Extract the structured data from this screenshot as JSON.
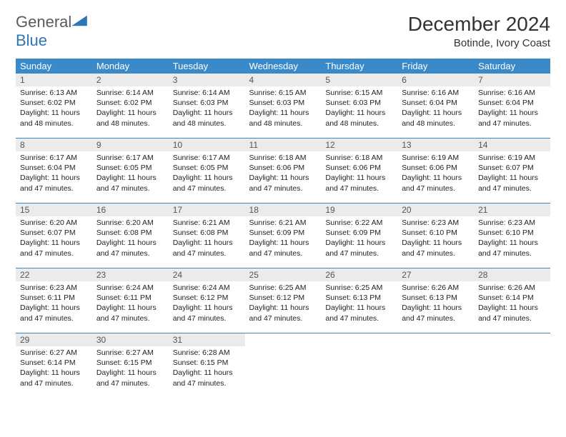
{
  "logo": {
    "general": "General",
    "blue": "Blue"
  },
  "title": "December 2024",
  "location": "Botinde, Ivory Coast",
  "colors": {
    "header_bg": "#3a8ac9",
    "header_text": "#ffffff",
    "daynum_bg": "#ebebeb",
    "daynum_text": "#555555",
    "body_text": "#222222",
    "accent": "#2e75b6"
  },
  "day_names": [
    "Sunday",
    "Monday",
    "Tuesday",
    "Wednesday",
    "Thursday",
    "Friday",
    "Saturday"
  ],
  "weeks": [
    [
      {
        "n": "1",
        "sr": "6:13 AM",
        "ss": "6:02 PM",
        "dl": "11 hours and 48 minutes."
      },
      {
        "n": "2",
        "sr": "6:14 AM",
        "ss": "6:02 PM",
        "dl": "11 hours and 48 minutes."
      },
      {
        "n": "3",
        "sr": "6:14 AM",
        "ss": "6:03 PM",
        "dl": "11 hours and 48 minutes."
      },
      {
        "n": "4",
        "sr": "6:15 AM",
        "ss": "6:03 PM",
        "dl": "11 hours and 48 minutes."
      },
      {
        "n": "5",
        "sr": "6:15 AM",
        "ss": "6:03 PM",
        "dl": "11 hours and 48 minutes."
      },
      {
        "n": "6",
        "sr": "6:16 AM",
        "ss": "6:04 PM",
        "dl": "11 hours and 48 minutes."
      },
      {
        "n": "7",
        "sr": "6:16 AM",
        "ss": "6:04 PM",
        "dl": "11 hours and 47 minutes."
      }
    ],
    [
      {
        "n": "8",
        "sr": "6:17 AM",
        "ss": "6:04 PM",
        "dl": "11 hours and 47 minutes."
      },
      {
        "n": "9",
        "sr": "6:17 AM",
        "ss": "6:05 PM",
        "dl": "11 hours and 47 minutes."
      },
      {
        "n": "10",
        "sr": "6:17 AM",
        "ss": "6:05 PM",
        "dl": "11 hours and 47 minutes."
      },
      {
        "n": "11",
        "sr": "6:18 AM",
        "ss": "6:06 PM",
        "dl": "11 hours and 47 minutes."
      },
      {
        "n": "12",
        "sr": "6:18 AM",
        "ss": "6:06 PM",
        "dl": "11 hours and 47 minutes."
      },
      {
        "n": "13",
        "sr": "6:19 AM",
        "ss": "6:06 PM",
        "dl": "11 hours and 47 minutes."
      },
      {
        "n": "14",
        "sr": "6:19 AM",
        "ss": "6:07 PM",
        "dl": "11 hours and 47 minutes."
      }
    ],
    [
      {
        "n": "15",
        "sr": "6:20 AM",
        "ss": "6:07 PM",
        "dl": "11 hours and 47 minutes."
      },
      {
        "n": "16",
        "sr": "6:20 AM",
        "ss": "6:08 PM",
        "dl": "11 hours and 47 minutes."
      },
      {
        "n": "17",
        "sr": "6:21 AM",
        "ss": "6:08 PM",
        "dl": "11 hours and 47 minutes."
      },
      {
        "n": "18",
        "sr": "6:21 AM",
        "ss": "6:09 PM",
        "dl": "11 hours and 47 minutes."
      },
      {
        "n": "19",
        "sr": "6:22 AM",
        "ss": "6:09 PM",
        "dl": "11 hours and 47 minutes."
      },
      {
        "n": "20",
        "sr": "6:23 AM",
        "ss": "6:10 PM",
        "dl": "11 hours and 47 minutes."
      },
      {
        "n": "21",
        "sr": "6:23 AM",
        "ss": "6:10 PM",
        "dl": "11 hours and 47 minutes."
      }
    ],
    [
      {
        "n": "22",
        "sr": "6:23 AM",
        "ss": "6:11 PM",
        "dl": "11 hours and 47 minutes."
      },
      {
        "n": "23",
        "sr": "6:24 AM",
        "ss": "6:11 PM",
        "dl": "11 hours and 47 minutes."
      },
      {
        "n": "24",
        "sr": "6:24 AM",
        "ss": "6:12 PM",
        "dl": "11 hours and 47 minutes."
      },
      {
        "n": "25",
        "sr": "6:25 AM",
        "ss": "6:12 PM",
        "dl": "11 hours and 47 minutes."
      },
      {
        "n": "26",
        "sr": "6:25 AM",
        "ss": "6:13 PM",
        "dl": "11 hours and 47 minutes."
      },
      {
        "n": "27",
        "sr": "6:26 AM",
        "ss": "6:13 PM",
        "dl": "11 hours and 47 minutes."
      },
      {
        "n": "28",
        "sr": "6:26 AM",
        "ss": "6:14 PM",
        "dl": "11 hours and 47 minutes."
      }
    ],
    [
      {
        "n": "29",
        "sr": "6:27 AM",
        "ss": "6:14 PM",
        "dl": "11 hours and 47 minutes."
      },
      {
        "n": "30",
        "sr": "6:27 AM",
        "ss": "6:15 PM",
        "dl": "11 hours and 47 minutes."
      },
      {
        "n": "31",
        "sr": "6:28 AM",
        "ss": "6:15 PM",
        "dl": "11 hours and 47 minutes."
      },
      null,
      null,
      null,
      null
    ]
  ],
  "labels": {
    "sunrise": "Sunrise:",
    "sunset": "Sunset:",
    "daylight": "Daylight:"
  }
}
